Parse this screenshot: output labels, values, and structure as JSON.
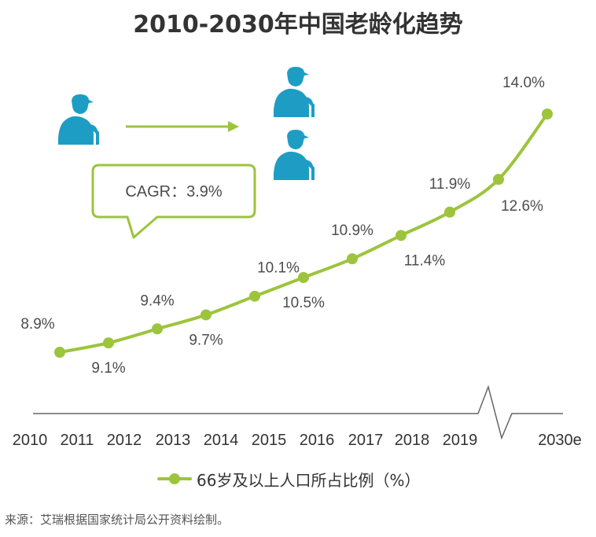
{
  "title": "2010-2030年中国老龄化趋势",
  "cagr_text": "CAGR：3.9%",
  "legend_label": "66岁及以上人口所占比例（%）",
  "source": "来源：艾瑞根据国家统计局公开资料绘制。",
  "colors": {
    "line": "#9dc43d",
    "icon": "#1e9dc4",
    "axis": "#666666",
    "text": "#4d4d4d"
  },
  "icons": [
    "elderly-person-icon",
    "arrow-right-icon"
  ],
  "chart_data": {
    "type": "line",
    "categories": [
      "2010",
      "2011",
      "2012",
      "2013",
      "2014",
      "2015",
      "2016",
      "2017",
      "2018",
      "2019",
      "2030e"
    ],
    "series": [
      {
        "name": "66岁及以上人口所占比例（%）",
        "values": [
          8.9,
          9.1,
          9.4,
          9.7,
          10.1,
          10.5,
          10.9,
          11.4,
          11.9,
          12.6,
          14.0
        ]
      }
    ],
    "data_labels": [
      "8.9%",
      "9.1%",
      "9.4%",
      "9.7%",
      "10.1%",
      "10.5%",
      "10.9%",
      "11.4%",
      "11.9%",
      "12.6%",
      "14.0%"
    ],
    "axis_break": "between 2019 and 2030e",
    "grid": false,
    "legend_position": "bottom"
  }
}
